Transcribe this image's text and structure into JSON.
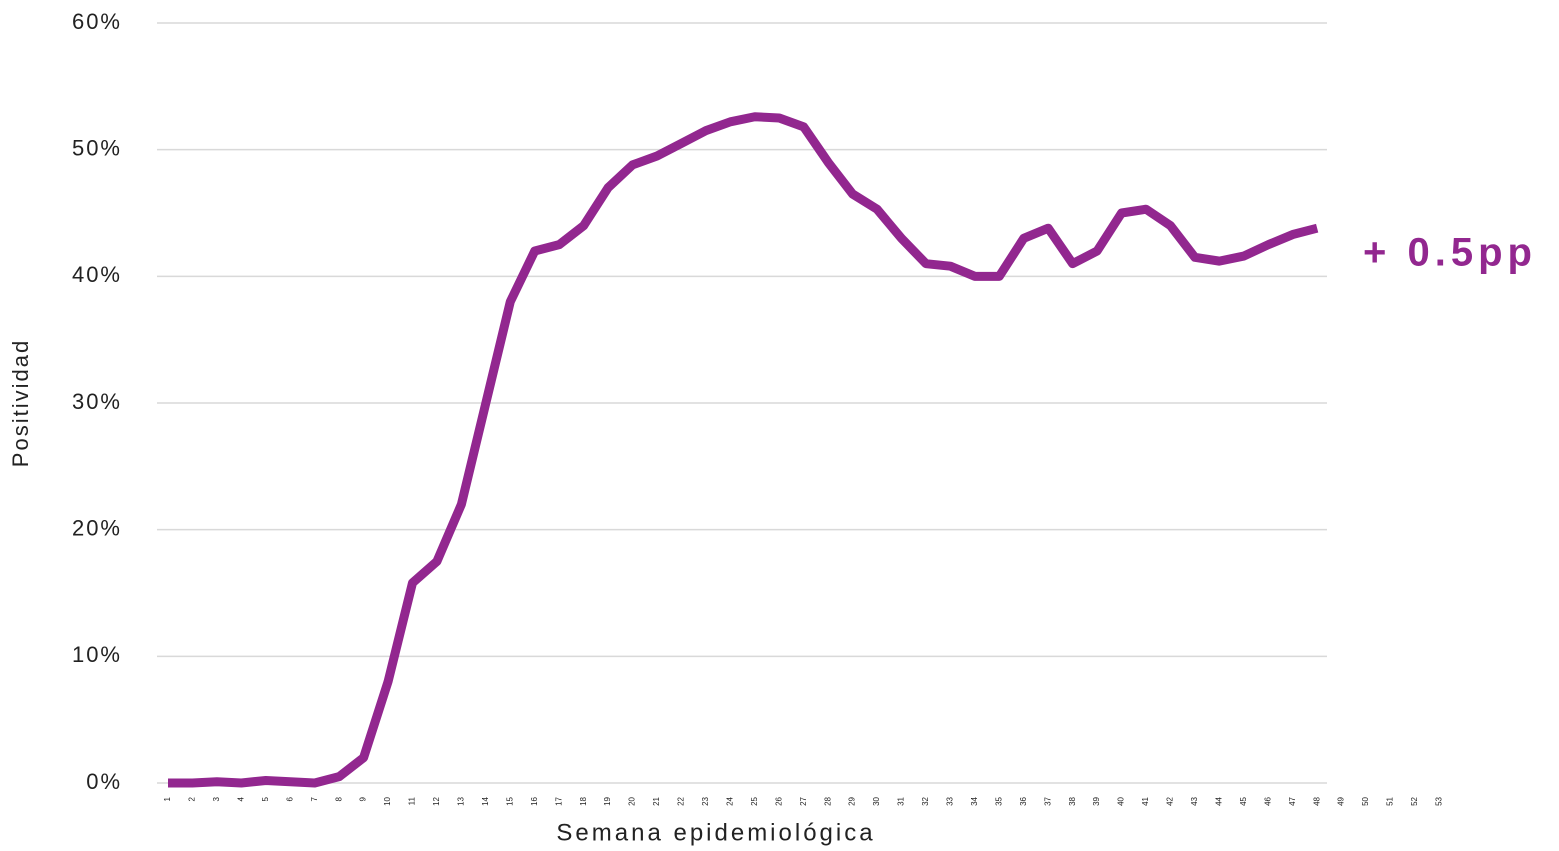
{
  "chart_data": {
    "type": "line",
    "y_label": "Positividad",
    "x_label": "Semana epidemiológica",
    "annotation": "+ 0.5pp",
    "categories": [
      "1",
      "2",
      "3",
      "4",
      "5",
      "6",
      "7",
      "8",
      "9",
      "10",
      "11",
      "12",
      "13",
      "14",
      "15",
      "16",
      "17",
      "18",
      "19",
      "20",
      "21",
      "22",
      "23",
      "24",
      "25",
      "26",
      "27",
      "28",
      "29",
      "30",
      "31",
      "32",
      "33",
      "34",
      "35",
      "36",
      "37",
      "38",
      "39",
      "40",
      "41",
      "42",
      "43",
      "44",
      "45",
      "46",
      "47",
      "48",
      "49",
      "50",
      "51",
      "52",
      "53"
    ],
    "series": [
      {
        "name": "Positividad",
        "color": "#92278f",
        "values": [
          0,
          0,
          0.1,
          0,
          0.2,
          0.1,
          0,
          0.5,
          2,
          8,
          15.8,
          17.5,
          22,
          30,
          38,
          42,
          42.5,
          44,
          47,
          48.8,
          49.5,
          50.5,
          51.5,
          52.2,
          52.6,
          52.5,
          51.8,
          49,
          46.5,
          45.3,
          43,
          41,
          40.8,
          40,
          40,
          43,
          43.8,
          41,
          42,
          45,
          45.3,
          44,
          41.5,
          41.2,
          41.6,
          42.5,
          43.3,
          43.8,
          null,
          null,
          null,
          null,
          null
        ]
      }
    ],
    "ylim": [
      0,
      60
    ],
    "yticks": [
      {
        "value": 0,
        "label": "0%"
      },
      {
        "value": 10,
        "label": "10%"
      },
      {
        "value": 20,
        "label": "20%"
      },
      {
        "value": 30,
        "label": "30%"
      },
      {
        "value": 40,
        "label": "40%"
      },
      {
        "value": 50,
        "label": "50%"
      },
      {
        "value": 60,
        "label": "60%"
      }
    ],
    "grid": true
  }
}
